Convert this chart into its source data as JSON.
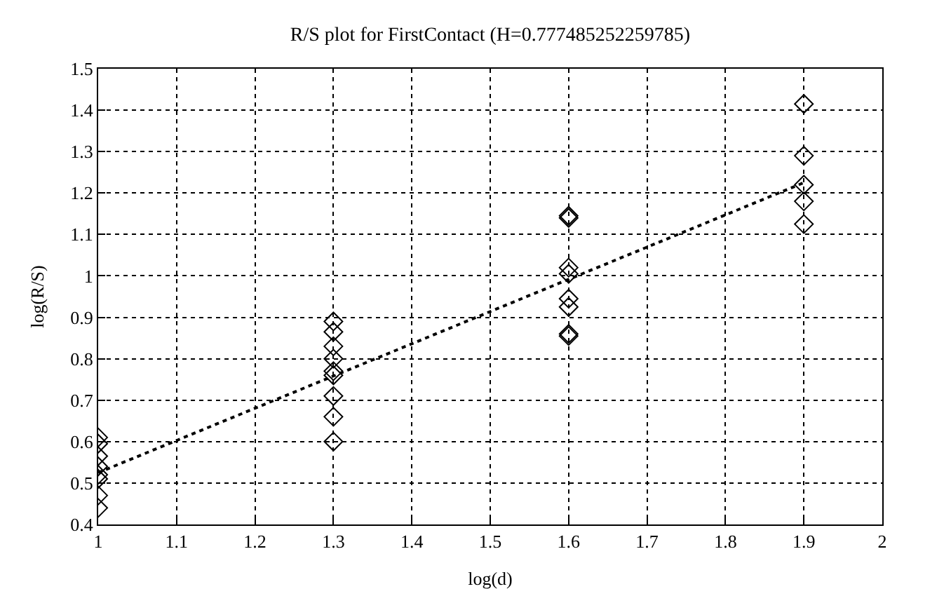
{
  "chart_data": {
    "type": "scatter",
    "title": "R/S plot for FirstContact (H=0.777485252259785)",
    "xlabel": "log(d)",
    "ylabel": "log(R/S)",
    "series": [
      {
        "color": "#000000",
        "marker": "diamond",
        "x": [
          1,
          1,
          1,
          1,
          1,
          1,
          1,
          1,
          1.3,
          1.3,
          1.3,
          1.3,
          1.3,
          1.3,
          1.3,
          1.3,
          1.3,
          1.6,
          1.6,
          1.6,
          1.6,
          1.6,
          1.6,
          1.6,
          1.6,
          1.9,
          1.9,
          1.9,
          1.9,
          1.9
        ],
        "values": [
          0.61,
          0.595,
          0.565,
          0.54,
          0.52,
          0.51,
          0.47,
          0.44,
          0.89,
          0.865,
          0.83,
          0.8,
          0.77,
          0.76,
          0.71,
          0.66,
          0.6,
          1.145,
          1.14,
          1.02,
          1.005,
          0.945,
          0.925,
          0.86,
          0.855,
          1.415,
          1.29,
          1.22,
          1.18,
          1.125
        ]
      },
      {
        "type": "line",
        "color": "#000000",
        "line_style": "dotted",
        "x": [
          1,
          1.9
        ],
        "values": [
          0.525,
          1.225
        ]
      }
    ],
    "xlim": [
      1,
      2
    ],
    "xticks": [
      1,
      1.1,
      1.2,
      1.3,
      1.4,
      1.5,
      1.6,
      1.7,
      1.8,
      1.9,
      2
    ],
    "ylim": [
      0.4,
      1.5
    ],
    "yticks": [
      0.4,
      0.5,
      0.6,
      0.7,
      0.8,
      0.9,
      1,
      1.1,
      1.2,
      1.3,
      1.4,
      1.5
    ],
    "grid": true
  }
}
